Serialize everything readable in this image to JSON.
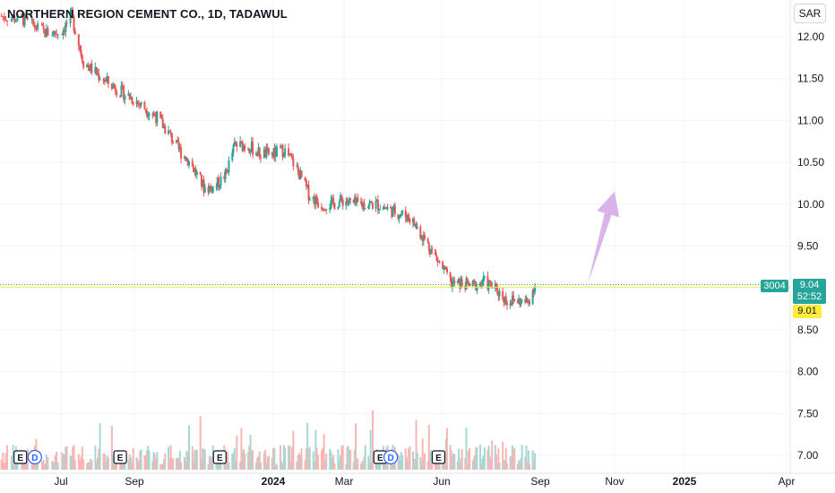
{
  "header": {
    "title": "NORTHERN REGION CEMENT CO., 1D, TADAWUL",
    "currency_button": "SAR"
  },
  "price_labels": {
    "last_price": "9.04",
    "countdown": "52:52",
    "volume": "3004",
    "previous_close": "9.01"
  },
  "colors": {
    "up": "#26a69a",
    "down": "#ef5350",
    "volume_up": "#a5d8d3",
    "volume_down": "#f7b6b4",
    "arrow": "#d8b4e8",
    "last_price_line": "#26a69a",
    "previous_close_line": "#ffeb3b"
  },
  "events": {
    "earnings_label": "E",
    "dividend_label": "D"
  },
  "chart_data": {
    "type": "candlestick",
    "title": "NORTHERN REGION CEMENT CO., 1D, TADAWUL",
    "currency": "SAR",
    "y_ticks": [
      12.0,
      11.5,
      11.0,
      10.5,
      10.0,
      9.5,
      9.0,
      8.5,
      8.0,
      7.5,
      7.0
    ],
    "y_tick_labels": [
      "12.00",
      "11.50",
      "11.00",
      "10.50",
      "10.00",
      "9.50",
      "9.00",
      "8.50",
      "8.00",
      "7.50",
      "7.00"
    ],
    "ylim": [
      6.65,
      12.37
    ],
    "x_tick_labels": [
      "Jul",
      "Sep",
      "2024",
      "Mar",
      "Jun",
      "Sep",
      "Nov",
      "2025",
      "Apr"
    ],
    "close_path": [
      [
        "2023-05-20",
        12.25
      ],
      [
        "2023-06-05",
        12.2
      ],
      [
        "2023-06-20",
        12.05
      ],
      [
        "2023-07-01",
        12.05
      ],
      [
        "2023-07-10",
        12.25
      ],
      [
        "2023-07-20",
        11.7
      ],
      [
        "2023-08-01",
        11.55
      ],
      [
        "2023-08-10",
        11.45
      ],
      [
        "2023-08-20",
        11.35
      ],
      [
        "2023-09-01",
        11.25
      ],
      [
        "2023-09-10",
        11.15
      ],
      [
        "2023-09-20",
        11.05
      ],
      [
        "2023-10-01",
        10.85
      ],
      [
        "2023-10-10",
        10.65
      ],
      [
        "2023-10-20",
        10.5
      ],
      [
        "2023-11-01",
        10.2
      ],
      [
        "2023-11-10",
        10.2
      ],
      [
        "2023-11-20",
        10.35
      ],
      [
        "2023-11-28",
        10.7
      ],
      [
        "2023-12-10",
        10.7
      ],
      [
        "2023-12-20",
        10.6
      ],
      [
        "2024-01-01",
        10.6
      ],
      [
        "2024-01-10",
        10.65
      ],
      [
        "2024-01-20",
        10.45
      ],
      [
        "2024-02-01",
        10.1
      ],
      [
        "2024-02-10",
        10.0
      ],
      [
        "2024-02-20",
        10.0
      ],
      [
        "2024-03-01",
        10.05
      ],
      [
        "2024-03-10",
        10.0
      ],
      [
        "2024-03-20",
        10.0
      ],
      [
        "2024-04-01",
        10.0
      ],
      [
        "2024-04-10",
        9.95
      ],
      [
        "2024-04-20",
        9.9
      ],
      [
        "2024-05-01",
        9.85
      ],
      [
        "2024-05-10",
        9.7
      ],
      [
        "2024-05-20",
        9.5
      ],
      [
        "2024-06-01",
        9.25
      ],
      [
        "2024-06-10",
        9.05
      ],
      [
        "2024-06-20",
        9.05
      ],
      [
        "2024-07-01",
        9.02
      ],
      [
        "2024-07-10",
        9.08
      ],
      [
        "2024-07-20",
        9.0
      ],
      [
        "2024-08-01",
        8.85
      ],
      [
        "2024-08-10",
        8.85
      ],
      [
        "2024-08-20",
        8.82
      ],
      [
        "2024-08-27",
        9.04
      ]
    ],
    "last_price": 9.04,
    "previous_close": 9.01,
    "last_volume": 3004,
    "forecast_arrow": {
      "from": [
        "2024-10-10",
        9.05
      ],
      "to": [
        "2024-11-01",
        10.15
      ]
    },
    "event_markers": [
      {
        "type": "E",
        "date": "2023-06-03"
      },
      {
        "type": "D",
        "date": "2023-06-13"
      },
      {
        "type": "E",
        "date": "2023-08-20"
      },
      {
        "type": "E",
        "date": "2023-11-15"
      },
      {
        "type": "E",
        "date": "2024-04-04"
      },
      {
        "type": "D",
        "date": "2024-04-14"
      },
      {
        "type": "E",
        "date": "2024-05-29"
      }
    ],
    "grid": true
  }
}
